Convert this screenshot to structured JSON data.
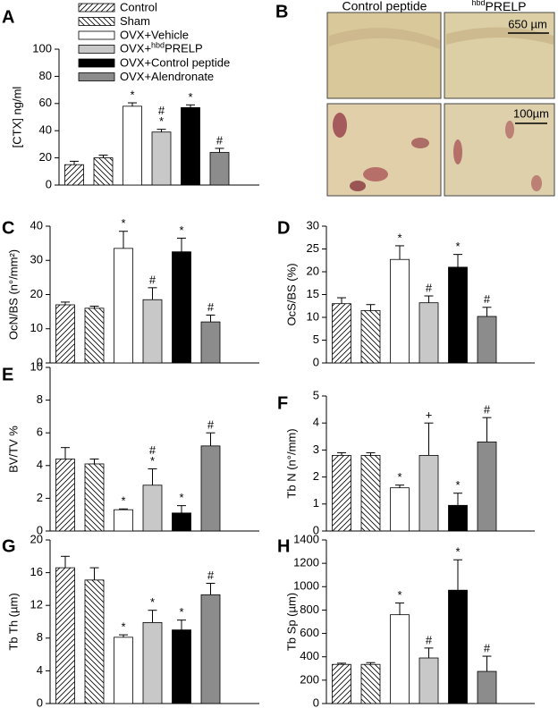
{
  "bar_fills": [
    "hatch-fwd",
    "hatch-back",
    "#ffffff",
    "#c8c8c8",
    "#000000",
    "#8c8c8c"
  ],
  "chart_data": [
    {
      "type": "bar",
      "panel": "A",
      "ylabel": "[CTX] ng/ml",
      "legend": [
        "Control",
        "Sham",
        "OVX+Vehicle",
        {
          "before": "OVX+",
          "sup": "hbd",
          "after": "PRELP"
        },
        "OVX+Control peptide",
        "OVX+Alendronate"
      ],
      "values": [
        15,
        20,
        58,
        39,
        57,
        24
      ],
      "errors": [
        2.5,
        2,
        2.5,
        2,
        2,
        3
      ],
      "marks": [
        null,
        null,
        [
          "*"
        ],
        [
          "#",
          "*"
        ],
        [
          "*"
        ],
        [
          "#"
        ]
      ],
      "ylim": [
        0,
        100
      ],
      "yticks": [
        0,
        20,
        40,
        60,
        80,
        100
      ]
    },
    {
      "type": "bar",
      "panel": "C",
      "ylabel": "OcN/BS (n°/mm²)",
      "values": [
        17,
        16,
        33.5,
        18.5,
        32.5,
        12
      ],
      "errors": [
        0.8,
        0.6,
        5,
        3.5,
        4,
        2
      ],
      "marks": [
        null,
        null,
        [
          "*"
        ],
        [
          "#"
        ],
        [
          "*"
        ],
        [
          "#"
        ]
      ],
      "ylim": [
        0,
        40
      ],
      "yticks": [
        0,
        10,
        20,
        30,
        40
      ]
    },
    {
      "type": "bar",
      "panel": "D",
      "ylabel": "OcS/BS (%)",
      "values": [
        13,
        11.5,
        22.7,
        13.2,
        21,
        10.2
      ],
      "errors": [
        1.3,
        1.3,
        3,
        1.5,
        2.8,
        2
      ],
      "marks": [
        null,
        null,
        [
          "*"
        ],
        [
          "#"
        ],
        [
          "*"
        ],
        [
          "#"
        ]
      ],
      "ylim": [
        0,
        30
      ],
      "yticks": [
        0,
        5,
        10,
        15,
        20,
        25,
        30
      ]
    },
    {
      "type": "bar",
      "panel": "E",
      "ylabel": "BV/TV %",
      "values": [
        4.4,
        4.1,
        1.3,
        2.8,
        1.1,
        5.2
      ],
      "errors": [
        0.7,
        0.3,
        0.05,
        1,
        0.45,
        0.8
      ],
      "marks": [
        null,
        null,
        [
          "*"
        ],
        [
          "#",
          "*"
        ],
        [
          "*"
        ],
        [
          "#"
        ]
      ],
      "ylim": [
        0,
        10
      ],
      "yticks": [
        0,
        2,
        4,
        6,
        8,
        10
      ]
    },
    {
      "type": "bar",
      "panel": "F",
      "ylabel": "Tb N (n°/mm)",
      "values": [
        2.8,
        2.8,
        1.6,
        2.8,
        0.95,
        3.3
      ],
      "errors": [
        0.1,
        0.1,
        0.1,
        1.2,
        0.45,
        0.9
      ],
      "marks": [
        null,
        null,
        [
          "*"
        ],
        [
          "+"
        ],
        [
          "*"
        ],
        [
          "#"
        ]
      ],
      "ylim": [
        0,
        5
      ],
      "yticks": [
        0,
        1,
        2,
        3,
        4,
        5
      ]
    },
    {
      "type": "bar",
      "panel": "G",
      "ylabel": "Tb Th (µm)",
      "values": [
        16.6,
        15.1,
        8.1,
        9.9,
        9,
        13.3
      ],
      "errors": [
        1.4,
        1.5,
        0.3,
        1.5,
        1.2,
        1.4
      ],
      "marks": [
        null,
        null,
        [
          "*"
        ],
        [
          "*"
        ],
        [
          "*"
        ],
        [
          "#"
        ]
      ],
      "ylim": [
        0,
        20
      ],
      "yticks": [
        0,
        4,
        8,
        12,
        16,
        20
      ]
    },
    {
      "type": "bar",
      "panel": "H",
      "ylabel": "Tb Sp (µm)",
      "values": [
        335,
        335,
        760,
        390,
        970,
        275
      ],
      "errors": [
        10,
        15,
        100,
        85,
        260,
        130
      ],
      "marks": [
        null,
        null,
        [
          "*"
        ],
        [
          "#"
        ],
        [
          "*"
        ],
        [
          "#"
        ]
      ],
      "ylim": [
        0,
        1400
      ],
      "yticks": [
        0,
        200,
        400,
        600,
        800,
        1000,
        1200,
        1400
      ]
    }
  ],
  "panel_b": {
    "panel": "B",
    "left_title": "Control peptide",
    "right_title": {
      "sup": "hbd",
      "text": "PRELP"
    },
    "scale_top": "650 µm",
    "scale_bottom": "100µm"
  }
}
